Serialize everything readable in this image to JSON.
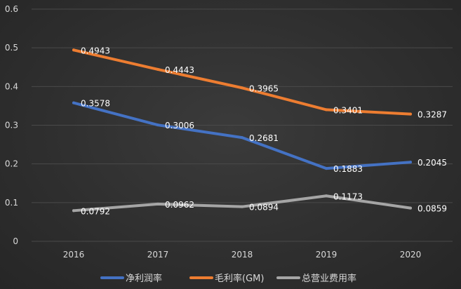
{
  "chart_data": {
    "type": "line",
    "categories": [
      "2016",
      "2017",
      "2018",
      "2019",
      "2020"
    ],
    "ylim": [
      0,
      0.6
    ],
    "yticks": [
      "0",
      "0.1",
      "0.2",
      "0.3",
      "0.4",
      "0.5",
      "0.6"
    ],
    "grid": true,
    "legend_position": "bottom",
    "series": [
      {
        "name": "净利润率",
        "color": "#4472c4",
        "values": [
          0.3578,
          0.3006,
          0.2681,
          0.1883,
          0.2045
        ],
        "labels": [
          "0.3578",
          "0.3006",
          "0.2681",
          "0.1883",
          "0.2045"
        ]
      },
      {
        "name": "毛利率(GM)",
        "color": "#ed7d31",
        "values": [
          0.4943,
          0.4443,
          0.3965,
          0.3401,
          0.3287
        ],
        "labels": [
          "0.4943",
          "0.4443",
          "0.3965",
          "0.3401",
          "0.3287"
        ]
      },
      {
        "name": "总营业费用率",
        "color": "#a5a5a5",
        "values": [
          0.0792,
          0.0962,
          0.0894,
          0.1173,
          0.0859
        ],
        "labels": [
          "0.0792",
          "0.0962",
          "0.0894",
          "0.1173",
          "0.0859"
        ]
      }
    ]
  }
}
